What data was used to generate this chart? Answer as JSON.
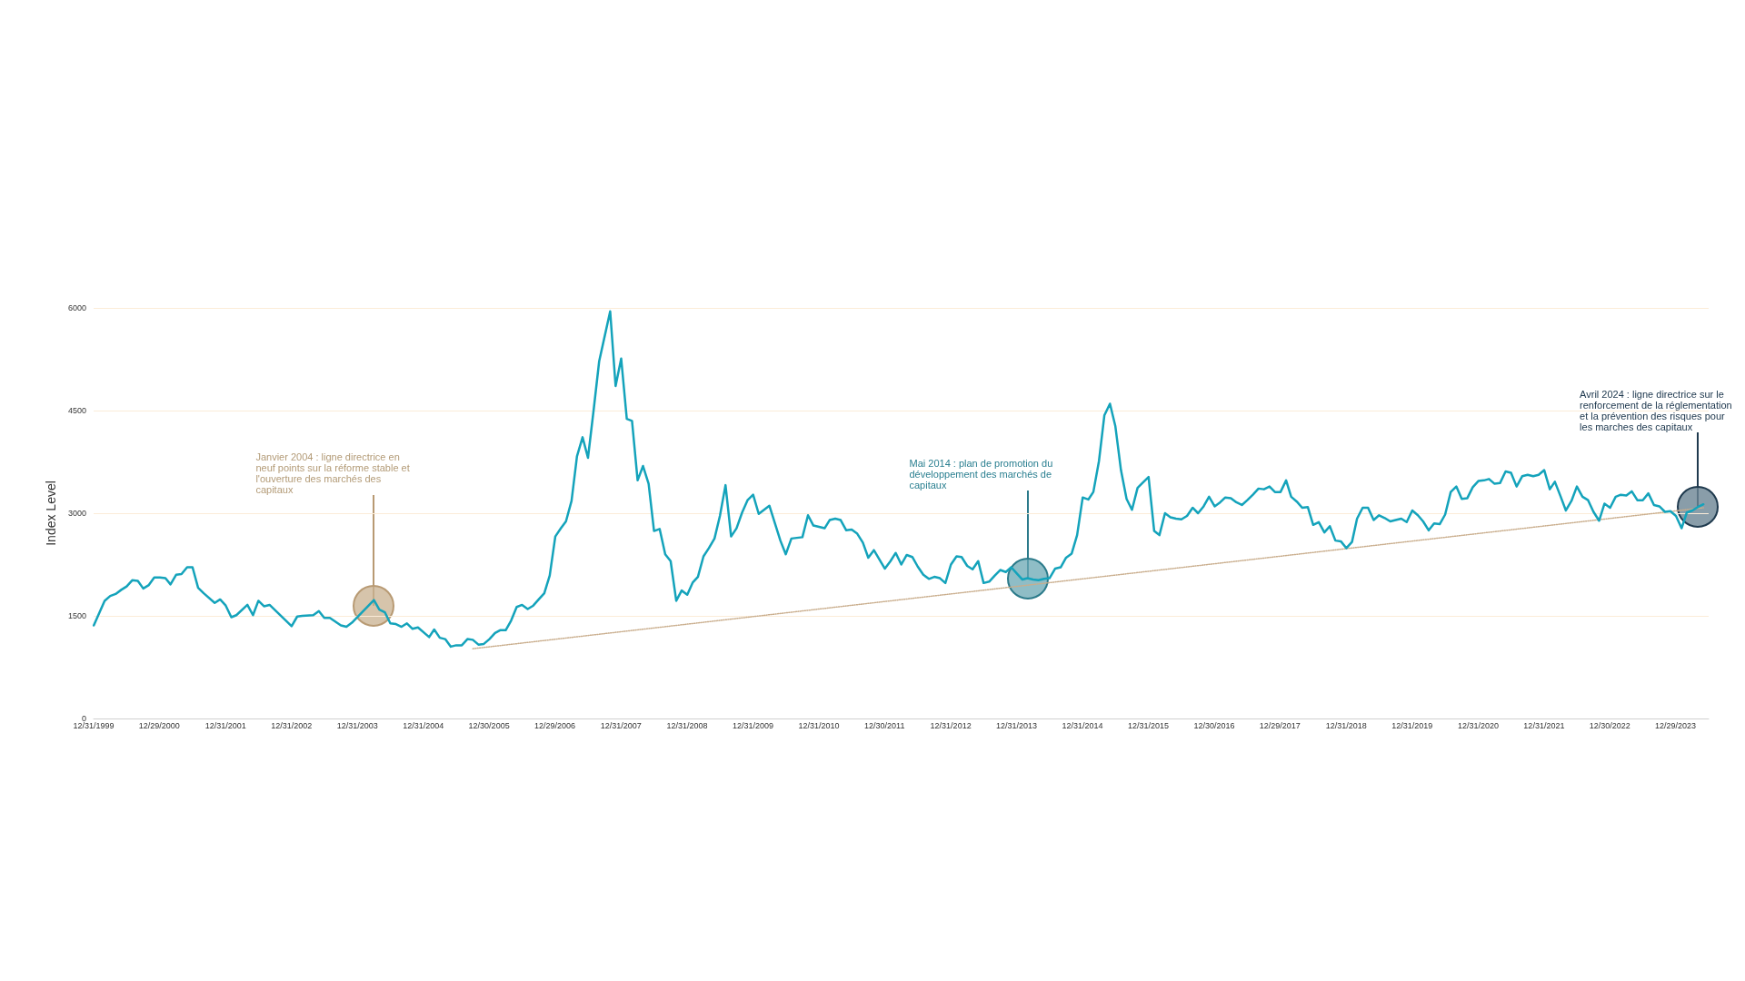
{
  "chart_data": {
    "type": "line",
    "ylabel": "Index Level",
    "grid": "y",
    "marker": "none",
    "xlim": [
      "1999-12-31",
      "2024-06-30"
    ],
    "ylim": [
      0,
      6000
    ],
    "yticks": [
      0,
      1500,
      3000,
      4500,
      6000
    ],
    "xticks": [
      {
        "value": "1999-12-31",
        "label": "12/31/1999"
      },
      {
        "value": "2000-12-29",
        "label": "12/29/2000"
      },
      {
        "value": "2001-12-31",
        "label": "12/31/2001"
      },
      {
        "value": "2002-12-31",
        "label": "12/31/2002"
      },
      {
        "value": "2003-12-31",
        "label": "12/31/2003"
      },
      {
        "value": "2004-12-31",
        "label": "12/31/2004"
      },
      {
        "value": "2005-12-30",
        "label": "12/30/2005"
      },
      {
        "value": "2006-12-29",
        "label": "12/29/2006"
      },
      {
        "value": "2007-12-31",
        "label": "12/31/2007"
      },
      {
        "value": "2008-12-31",
        "label": "12/31/2008"
      },
      {
        "value": "2009-12-31",
        "label": "12/31/2009"
      },
      {
        "value": "2010-12-31",
        "label": "12/31/2010"
      },
      {
        "value": "2011-12-30",
        "label": "12/30/2011"
      },
      {
        "value": "2012-12-31",
        "label": "12/31/2012"
      },
      {
        "value": "2013-12-31",
        "label": "12/31/2013"
      },
      {
        "value": "2014-12-31",
        "label": "12/31/2014"
      },
      {
        "value": "2015-12-31",
        "label": "12/31/2015"
      },
      {
        "value": "2016-12-30",
        "label": "12/30/2016"
      },
      {
        "value": "2017-12-29",
        "label": "12/29/2017"
      },
      {
        "value": "2018-12-31",
        "label": "12/31/2018"
      },
      {
        "value": "2019-12-31",
        "label": "12/31/2019"
      },
      {
        "value": "2020-12-31",
        "label": "12/31/2020"
      },
      {
        "value": "2021-12-31",
        "label": "12/31/2021"
      },
      {
        "value": "2022-12-30",
        "label": "12/30/2022"
      },
      {
        "value": "2023-12-29",
        "label": "12/29/2023"
      }
    ],
    "series": [
      {
        "color": "#14a3bb",
        "line_style": "solid",
        "x": [
          "2000-01",
          "2000-03",
          "2000-04",
          "2000-05",
          "2000-06",
          "2000-07",
          "2000-08",
          "2000-09",
          "2000-10",
          "2000-11",
          "2000-12",
          "2001-01",
          "2001-02",
          "2001-03",
          "2001-04",
          "2001-05",
          "2001-06",
          "2001-07",
          "2001-08",
          "2001-09",
          "2001-11",
          "2001-12",
          "2002-01",
          "2002-02",
          "2002-03",
          "2002-05",
          "2002-06",
          "2002-07",
          "2002-08",
          "2002-09",
          "2003-01",
          "2003-02",
          "2003-03",
          "2003-05",
          "2003-06",
          "2003-07",
          "2003-08",
          "2003-10",
          "2003-11",
          "2003-12",
          "2004-04",
          "2004-05",
          "2004-06",
          "2004-07",
          "2004-08",
          "2004-09",
          "2004-10",
          "2004-11",
          "2004-12",
          "2005-02",
          "2005-03",
          "2005-04",
          "2005-05",
          "2005-06",
          "2005-07",
          "2005-08",
          "2005-09",
          "2005-10",
          "2005-11",
          "2005-12",
          "2006-01",
          "2006-02",
          "2006-03",
          "2006-04",
          "2006-05",
          "2006-06",
          "2006-07",
          "2006-08",
          "2006-09",
          "2006-10",
          "2006-11",
          "2006-12",
          "2007-01",
          "2007-02",
          "2007-03",
          "2007-04",
          "2007-05",
          "2007-06",
          "2007-07",
          "2007-08",
          "2007-09",
          "2007-10",
          "2007-11",
          "2007-12",
          "2008-01",
          "2008-02",
          "2008-03",
          "2008-04",
          "2008-05",
          "2008-06",
          "2008-07",
          "2008-08",
          "2008-09",
          "2008-10",
          "2008-11",
          "2008-12",
          "2009-01",
          "2009-02",
          "2009-03",
          "2009-04",
          "2009-05",
          "2009-06",
          "2009-07",
          "2009-08",
          "2009-09",
          "2009-10",
          "2009-11",
          "2009-12",
          "2010-01",
          "2010-02",
          "2010-04",
          "2010-05",
          "2010-06",
          "2010-07",
          "2010-08",
          "2010-10",
          "2010-11",
          "2010-12",
          "2011-02",
          "2011-03",
          "2011-04",
          "2011-05",
          "2011-06",
          "2011-07",
          "2011-08",
          "2011-09",
          "2011-10",
          "2011-11",
          "2012-01",
          "2012-02",
          "2012-03",
          "2012-04",
          "2012-05",
          "2012-06",
          "2012-07",
          "2012-08",
          "2012-09",
          "2012-10",
          "2012-11",
          "2012-12",
          "2013-01",
          "2013-02",
          "2013-03",
          "2013-04",
          "2013-05",
          "2013-06",
          "2013-07",
          "2013-08",
          "2013-09",
          "2013-10",
          "2013-11",
          "2013-12",
          "2014-01",
          "2014-02",
          "2014-03",
          "2014-04",
          "2014-05",
          "2014-06",
          "2014-07",
          "2014-08",
          "2014-09",
          "2014-10",
          "2014-11",
          "2014-12",
          "2015-01",
          "2015-02",
          "2015-03",
          "2015-04",
          "2015-05",
          "2015-06",
          "2015-07",
          "2015-08",
          "2015-09",
          "2015-10",
          "2015-11",
          "2015-12",
          "2016-01",
          "2016-02",
          "2016-03",
          "2016-04",
          "2016-05",
          "2016-06",
          "2016-07",
          "2016-08",
          "2016-09",
          "2016-10",
          "2016-11",
          "2016-12",
          "2017-01",
          "2017-02",
          "2017-03",
          "2017-04",
          "2017-05",
          "2017-06",
          "2017-07",
          "2017-08",
          "2017-09",
          "2017-10",
          "2017-11",
          "2017-12",
          "2018-01",
          "2018-02",
          "2018-03",
          "2018-04",
          "2018-05",
          "2018-06",
          "2018-07",
          "2018-08",
          "2018-09",
          "2018-10",
          "2018-11",
          "2018-12",
          "2019-01",
          "2019-02",
          "2019-03",
          "2019-04",
          "2019-05",
          "2019-06",
          "2019-07",
          "2019-08",
          "2019-09",
          "2019-10",
          "2019-11",
          "2019-12",
          "2020-01",
          "2020-02",
          "2020-03",
          "2020-04",
          "2020-05",
          "2020-06",
          "2020-07",
          "2020-08",
          "2020-09",
          "2020-10",
          "2020-11",
          "2020-12",
          "2021-01",
          "2021-02",
          "2021-03",
          "2021-04",
          "2021-05",
          "2021-06",
          "2021-07",
          "2021-08",
          "2021-09",
          "2021-10",
          "2021-11",
          "2021-12",
          "2022-01",
          "2022-02",
          "2022-03",
          "2022-04",
          "2022-05",
          "2022-06",
          "2022-07",
          "2022-08",
          "2022-09",
          "2022-10",
          "2022-11",
          "2022-12",
          "2023-01",
          "2023-02",
          "2023-03",
          "2023-04",
          "2023-05",
          "2023-06",
          "2023-07",
          "2023-08",
          "2023-09",
          "2023-10",
          "2023-11",
          "2023-12",
          "2024-01",
          "2024-02",
          "2024-03",
          "2024-04",
          "2024-05",
          "2024-06"
        ],
        "values": [
          1360,
          1720,
          1790,
          1820,
          1880,
          1930,
          2020,
          2010,
          1900,
          1950,
          2060,
          2060,
          2050,
          1960,
          2100,
          2110,
          2210,
          2210,
          1910,
          1830,
          1690,
          1740,
          1650,
          1480,
          1510,
          1660,
          1510,
          1720,
          1640,
          1660,
          1350,
          1490,
          1500,
          1510,
          1570,
          1470,
          1470,
          1360,
          1340,
          1400,
          1730,
          1590,
          1550,
          1390,
          1380,
          1340,
          1390,
          1310,
          1330,
          1190,
          1300,
          1180,
          1160,
          1050,
          1070,
          1070,
          1160,
          1150,
          1080,
          1090,
          1160,
          1250,
          1290,
          1290,
          1430,
          1630,
          1660,
          1600,
          1650,
          1740,
          1830,
          2090,
          2660,
          2780,
          2880,
          3180,
          3830,
          4110,
          3810,
          4500,
          5220,
          5580,
          5950,
          4860,
          5260,
          4380,
          4350,
          3480,
          3690,
          3430,
          2740,
          2770,
          2400,
          2300,
          1720,
          1870,
          1810,
          1990,
          2070,
          2370,
          2490,
          2630,
          2960,
          3410,
          2660,
          2780,
          3010,
          3190,
          3270,
          2990,
          3110,
          2860,
          2600,
          2400,
          2630,
          2650,
          2970,
          2820,
          2780,
          2900,
          2920,
          2900,
          2750,
          2760,
          2700,
          2570,
          2350,
          2460,
          2190,
          2300,
          2420,
          2250,
          2390,
          2360,
          2220,
          2100,
          2040,
          2070,
          2050,
          1980,
          2250,
          2370,
          2360,
          2230,
          2180,
          2300,
          1980,
          2000,
          2090,
          2170,
          2140,
          2210,
          2120,
          2030,
          2050,
          2030,
          2020,
          2040,
          2050,
          2190,
          2210,
          2350,
          2410,
          2680,
          3230,
          3200,
          3310,
          3760,
          4430,
          4600,
          4270,
          3630,
          3210,
          3050,
          3370,
          3450,
          3530,
          2740,
          2680,
          3000,
          2940,
          2920,
          2910,
          2960,
          3080,
          3000,
          3100,
          3240,
          3100,
          3160,
          3230,
          3220,
          3160,
          3120,
          3190,
          3270,
          3360,
          3350,
          3390,
          3310,
          3310,
          3480,
          3240,
          3170,
          3080,
          3090,
          2830,
          2870,
          2720,
          2810,
          2600,
          2590,
          2490,
          2580,
          2920,
          3080,
          3080,
          2900,
          2970,
          2930,
          2880,
          2900,
          2920,
          2870,
          3040,
          2970,
          2880,
          2750,
          2850,
          2840,
          2980,
          3310,
          3390,
          3210,
          3220,
          3380,
          3470,
          3480,
          3500,
          3430,
          3440,
          3610,
          3590,
          3390,
          3540,
          3560,
          3540,
          3560,
          3630,
          3350,
          3460,
          3250,
          3040,
          3180,
          3390,
          3240,
          3190,
          3020,
          2890,
          3140,
          3080,
          3240,
          3270,
          3260,
          3320,
          3190,
          3190,
          3290,
          3120,
          3100,
          3020,
          3030,
          2960,
          2780,
          3010,
          3040,
          3090,
          3130
        ]
      },
      {
        "type": "line",
        "color": "#c9ad8c",
        "line_style": "dotted",
        "x": [
          "2005-10",
          "2024-06"
        ],
        "values": [
          1020,
          3080
        ]
      }
    ],
    "annotations": [
      {
        "text": "Janvier 2004 : ligne directrice en neuf points sur la réforme stable et l'ouverture des marchés des capitaux",
        "x": "2004-04",
        "y": 1640
      },
      {
        "text": "Mai 2014 : plan de promotion du développement des marchés de capitaux",
        "x": "2014-03",
        "y": 2050
      },
      {
        "text": "Avril 2024 : ligne directrice sur le renforcement de la réglementation et la prévention des risques pour les marches des capitaux",
        "x": "2024-05",
        "y": 3090
      }
    ]
  }
}
